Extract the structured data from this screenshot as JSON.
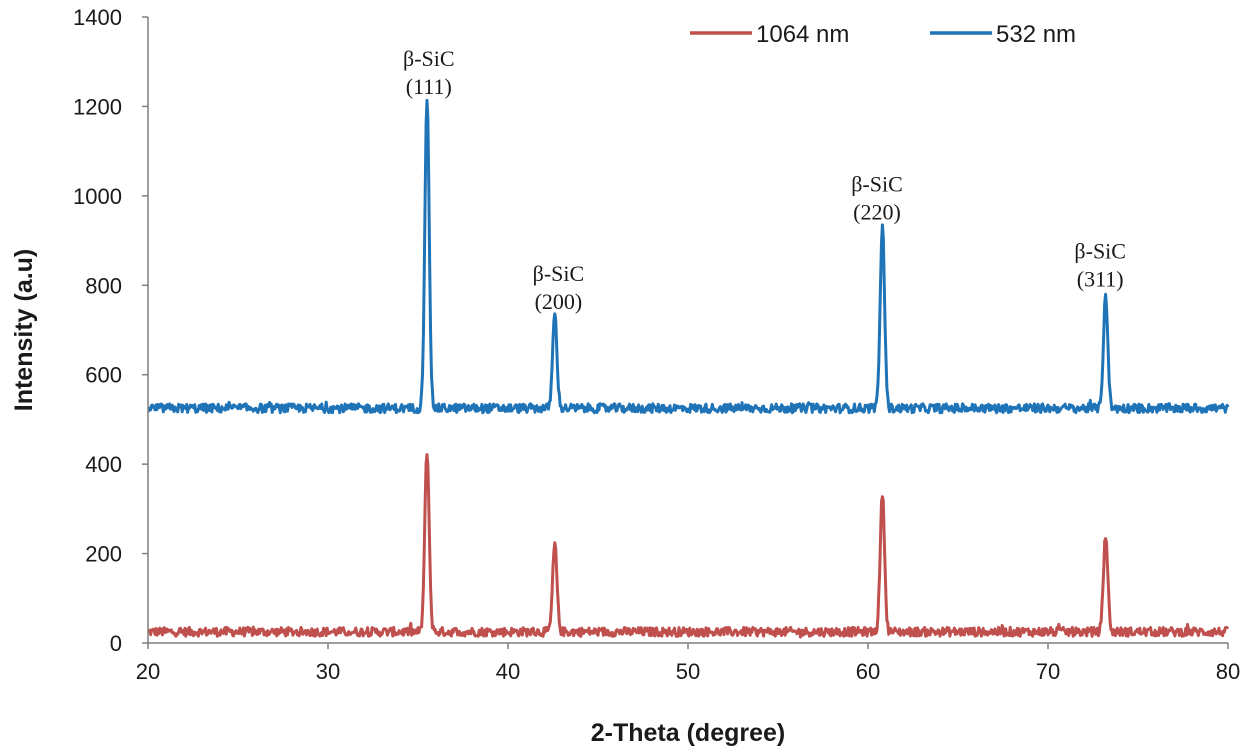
{
  "chart_data": {
    "type": "line",
    "title": "",
    "xlabel": "2-Theta (degree)",
    "ylabel": "Intensity (a.u)",
    "xlim": [
      20,
      80
    ],
    "ylim": [
      0,
      1400
    ],
    "xticks": [
      "20",
      "30",
      "40",
      "50",
      "60",
      "70",
      "80"
    ],
    "yticks": [
      "0",
      "200",
      "400",
      "600",
      "800",
      "1000",
      "1200",
      "1400"
    ],
    "grid": false,
    "legend_position": "top-right",
    "series": [
      {
        "name": "1064 nm",
        "color": "#c0504d",
        "baseline": 25,
        "noise": 10,
        "peaks": [
          {
            "x": 35.5,
            "height": 430
          },
          {
            "x": 42.6,
            "height": 220
          },
          {
            "x": 60.8,
            "height": 335
          },
          {
            "x": 73.2,
            "height": 242
          }
        ]
      },
      {
        "name": "532 nm",
        "color": "#1f73b7",
        "baseline": 525,
        "noise": 10,
        "peaks": [
          {
            "x": 35.5,
            "height": 1220
          },
          {
            "x": 42.6,
            "height": 735
          },
          {
            "x": 60.8,
            "height": 935
          },
          {
            "x": 73.2,
            "height": 780
          }
        ]
      }
    ],
    "annotations": [
      {
        "name": "(111)",
        "line1": "β-SiC",
        "line2": "(111)",
        "x": 35.6,
        "y": 1290
      },
      {
        "name": "(200)",
        "line1": "β-SiC",
        "line2": "(200)",
        "x": 42.8,
        "y": 810
      },
      {
        "name": "(220)",
        "line1": "β-SiC",
        "line2": "(220)",
        "x": 60.5,
        "y": 1010
      },
      {
        "name": "(311)",
        "line1": "β-SiC",
        "line2": "(311)",
        "x": 72.9,
        "y": 860
      }
    ]
  }
}
